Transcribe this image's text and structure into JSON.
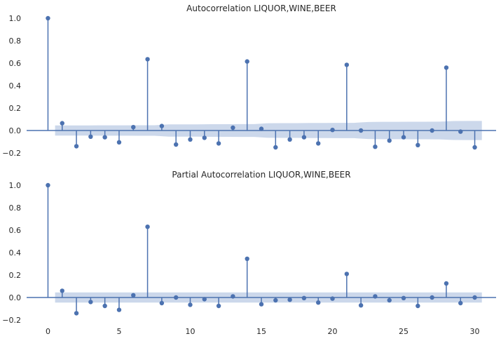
{
  "chart_data": [
    {
      "type": "stem",
      "title": "Autocorrelation LIQUOR,WINE,BEER",
      "xlim": [
        -1.5,
        31.5
      ],
      "ylim": [
        -0.25,
        1.05
      ],
      "xticks": [
        0,
        5,
        10,
        15,
        20,
        25,
        30
      ],
      "yticks": [
        -0.2,
        0.0,
        0.2,
        0.4,
        0.6,
        0.8,
        1.0
      ],
      "ytick_labels": [
        "−0.2",
        "0.0",
        "0.2",
        "0.4",
        "0.6",
        "0.8",
        "1.0"
      ],
      "x": [
        0,
        1,
        2,
        3,
        4,
        5,
        6,
        7,
        8,
        9,
        10,
        11,
        12,
        13,
        14,
        15,
        16,
        17,
        18,
        19,
        20,
        21,
        22,
        23,
        24,
        25,
        26,
        27,
        28,
        29,
        30
      ],
      "values": [
        1.0,
        0.065,
        -0.14,
        -0.055,
        -0.06,
        -0.105,
        0.03,
        0.635,
        0.04,
        -0.125,
        -0.08,
        -0.065,
        -0.115,
        0.025,
        0.615,
        0.015,
        -0.15,
        -0.08,
        -0.06,
        -0.115,
        0.005,
        0.585,
        0.0,
        -0.145,
        -0.09,
        -0.06,
        -0.13,
        0.0,
        0.56,
        -0.01,
        -0.15
      ],
      "conf_x": [
        0.5,
        1.5,
        2.5,
        3.5,
        4.5,
        5.5,
        6.5,
        7.5,
        8.5,
        9.5,
        10.5,
        11.5,
        12.5,
        13.5,
        14.5,
        15.5,
        16.5,
        17.5,
        18.5,
        19.5,
        20.5,
        21.5,
        22.5,
        23.5,
        24.5,
        25.5,
        26.5,
        27.5,
        28.5,
        29.5,
        30.5
      ],
      "conf_band": [
        0.045,
        0.045,
        0.045,
        0.046,
        0.046,
        0.046,
        0.047,
        0.047,
        0.055,
        0.055,
        0.055,
        0.056,
        0.056,
        0.057,
        0.057,
        0.065,
        0.066,
        0.066,
        0.067,
        0.067,
        0.068,
        0.068,
        0.076,
        0.077,
        0.077,
        0.078,
        0.078,
        0.079,
        0.084,
        0.085,
        0.085
      ],
      "grid": false,
      "legend": false
    },
    {
      "type": "stem",
      "title": "Partial Autocorrelation LIQUOR,WINE,BEER",
      "xlim": [
        -1.5,
        31.5
      ],
      "ylim": [
        -0.25,
        1.05
      ],
      "xticks": [
        0,
        5,
        10,
        15,
        20,
        25,
        30
      ],
      "yticks": [
        -0.2,
        0.0,
        0.2,
        0.4,
        0.6,
        0.8,
        1.0
      ],
      "ytick_labels": [
        "−0.2",
        "0.0",
        "0.2",
        "0.4",
        "0.6",
        "0.8",
        "1.0"
      ],
      "x": [
        0,
        1,
        2,
        3,
        4,
        5,
        6,
        7,
        8,
        9,
        10,
        11,
        12,
        13,
        14,
        15,
        16,
        17,
        18,
        19,
        20,
        21,
        22,
        23,
        24,
        25,
        26,
        27,
        28,
        29,
        30
      ],
      "values": [
        1.0,
        0.06,
        -0.14,
        -0.04,
        -0.075,
        -0.11,
        0.02,
        0.63,
        -0.05,
        0.0,
        -0.065,
        -0.015,
        -0.075,
        0.01,
        0.345,
        -0.06,
        -0.025,
        -0.02,
        -0.005,
        -0.045,
        -0.01,
        0.21,
        -0.07,
        0.01,
        -0.025,
        -0.005,
        -0.075,
        0.0,
        0.125,
        -0.05,
        0.0
      ],
      "conf_x": [
        0.5,
        30.5
      ],
      "conf_band": [
        0.045,
        0.045
      ],
      "grid": false,
      "legend": false
    }
  ],
  "colors": {
    "stem": "#4c72b0",
    "band": "#c9d6ea",
    "axis_text": "#262626",
    "title_text": "#262626"
  }
}
